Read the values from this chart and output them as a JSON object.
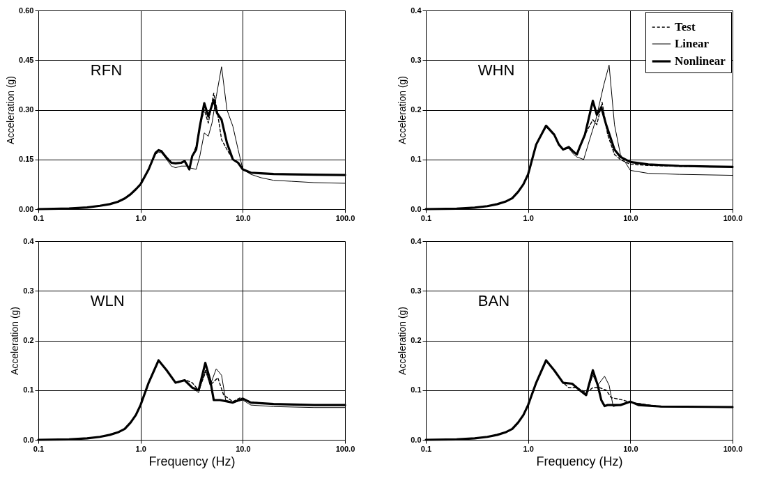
{
  "chart_data": [
    {
      "type": "line",
      "annotations": [
        "RFN"
      ],
      "ylabel": "Acceleration (g)",
      "ylim": [
        0,
        0.6
      ],
      "yticks": [
        {
          "value": 0,
          "label": "0.00"
        },
        0.15,
        {
          "value": 0.3,
          "label": "0.30"
        },
        0.45,
        {
          "value": 0.6,
          "label": "0.60"
        }
      ],
      "xlim": [
        0.1,
        100
      ],
      "xticks": [
        {
          "value": 0.1,
          "label": "0.1"
        },
        {
          "value": 1,
          "label": "1.0"
        },
        {
          "value": 10,
          "label": "10.0"
        },
        {
          "value": 100,
          "label": "100.0"
        }
      ],
      "log": "x",
      "grid": true,
      "legend": false,
      "series": [
        {
          "color": "#000000",
          "line_style": "dashed",
          "x": [
            0.1,
            0.2,
            0.3,
            0.4,
            0.5,
            0.6,
            0.7,
            0.8,
            0.9,
            1.0,
            1.2,
            1.4,
            1.5,
            1.6,
            1.8,
            2.0,
            2.2,
            2.5,
            2.7,
            3.0,
            3.2,
            3.5,
            3.8,
            4.2,
            4.6,
            5.2,
            5.6,
            6.2,
            7.0,
            8.0,
            9.0,
            10,
            12,
            15,
            20,
            30,
            50,
            100
          ],
          "values": [
            0.0,
            0.002,
            0.005,
            0.01,
            0.015,
            0.022,
            0.032,
            0.045,
            0.06,
            0.075,
            0.12,
            0.17,
            0.178,
            0.175,
            0.155,
            0.14,
            0.138,
            0.14,
            0.145,
            0.12,
            0.16,
            0.19,
            0.25,
            0.3,
            0.26,
            0.35,
            0.3,
            0.21,
            0.18,
            0.15,
            0.14,
            0.12,
            0.11,
            0.108,
            0.106,
            0.105,
            0.104,
            0.103
          ]
        },
        {
          "color": "#000000",
          "line_style": "solid",
          "x": [
            0.1,
            0.2,
            0.3,
            0.4,
            0.5,
            0.6,
            0.7,
            0.8,
            0.9,
            1.0,
            1.2,
            1.4,
            1.5,
            1.6,
            1.8,
            2.0,
            2.2,
            2.5,
            2.8,
            3.0,
            3.5,
            3.8,
            4.2,
            4.6,
            5.0,
            5.5,
            6.2,
            7.0,
            8.0,
            9.0,
            10,
            12,
            15,
            20,
            30,
            50,
            100
          ],
          "values": [
            0.0,
            0.002,
            0.005,
            0.01,
            0.015,
            0.022,
            0.032,
            0.045,
            0.06,
            0.075,
            0.12,
            0.165,
            0.172,
            0.17,
            0.15,
            0.13,
            0.125,
            0.13,
            0.13,
            0.125,
            0.12,
            0.16,
            0.23,
            0.22,
            0.26,
            0.34,
            0.43,
            0.3,
            0.25,
            0.18,
            0.12,
            0.105,
            0.095,
            0.087,
            0.084,
            0.08,
            0.078
          ]
        },
        {
          "color": "#000000",
          "line_style": "solid",
          "x": [
            0.1,
            0.2,
            0.3,
            0.4,
            0.5,
            0.6,
            0.7,
            0.8,
            0.9,
            1.0,
            1.2,
            1.4,
            1.5,
            1.6,
            1.8,
            2.0,
            2.2,
            2.5,
            2.7,
            3.0,
            3.2,
            3.5,
            3.8,
            4.2,
            4.6,
            5.2,
            5.6,
            6.2,
            7.0,
            8.0,
            9.0,
            10,
            12,
            15,
            20,
            30,
            50,
            100
          ],
          "values": [
            0.0,
            0.002,
            0.005,
            0.01,
            0.015,
            0.022,
            0.032,
            0.045,
            0.06,
            0.075,
            0.12,
            0.17,
            0.178,
            0.175,
            0.155,
            0.14,
            0.138,
            0.14,
            0.145,
            0.12,
            0.16,
            0.18,
            0.25,
            0.32,
            0.28,
            0.33,
            0.29,
            0.27,
            0.2,
            0.15,
            0.14,
            0.12,
            0.11,
            0.108,
            0.106,
            0.105,
            0.104,
            0.103
          ]
        }
      ]
    },
    {
      "type": "line",
      "annotations": [
        "WHN"
      ],
      "ylabel": "Acceleration (g)",
      "ylim": [
        0,
        0.4
      ],
      "yticks": [
        {
          "value": 0,
          "label": "0.0"
        },
        0.1,
        0.2,
        0.3,
        0.4
      ],
      "xlim": [
        0.1,
        100
      ],
      "xticks": [
        {
          "value": 0.1,
          "label": "0.1"
        },
        {
          "value": 1,
          "label": "1.0"
        },
        {
          "value": 10,
          "label": "10.0"
        },
        {
          "value": 100,
          "label": "100.0"
        }
      ],
      "log": "x",
      "grid": true,
      "legend": "top right",
      "series": [
        {
          "name": "Test",
          "color": "#000000",
          "line_style": "dashed",
          "x": [
            0.1,
            0.2,
            0.3,
            0.4,
            0.5,
            0.6,
            0.7,
            0.8,
            0.9,
            1.0,
            1.2,
            1.5,
            1.8,
            2.0,
            2.2,
            2.5,
            2.8,
            3.0,
            3.2,
            3.6,
            4.3,
            4.7,
            5.3,
            6.0,
            7.0,
            8.0,
            10,
            15,
            30,
            100
          ],
          "values": [
            0.0,
            0.001,
            0.003,
            0.006,
            0.01,
            0.015,
            0.022,
            0.035,
            0.05,
            0.07,
            0.13,
            0.168,
            0.15,
            0.13,
            0.12,
            0.125,
            0.115,
            0.11,
            0.125,
            0.15,
            0.18,
            0.17,
            0.215,
            0.15,
            0.11,
            0.1,
            0.09,
            0.088,
            0.086,
            0.085
          ]
        },
        {
          "name": "Linear",
          "color": "#000000",
          "line_style": "solid",
          "x": [
            0.1,
            0.2,
            0.3,
            0.4,
            0.5,
            0.6,
            0.7,
            0.8,
            0.9,
            1.0,
            1.2,
            1.5,
            1.8,
            2.0,
            2.2,
            2.5,
            2.8,
            3.0,
            3.5,
            4.0,
            4.6,
            5.5,
            6.2,
            7.0,
            8.0,
            10,
            15,
            30,
            100
          ],
          "values": [
            0.0,
            0.001,
            0.003,
            0.006,
            0.01,
            0.015,
            0.022,
            0.035,
            0.05,
            0.07,
            0.13,
            0.165,
            0.148,
            0.128,
            0.12,
            0.122,
            0.11,
            0.105,
            0.1,
            0.14,
            0.18,
            0.25,
            0.29,
            0.17,
            0.11,
            0.078,
            0.072,
            0.07,
            0.068
          ]
        },
        {
          "name": "Nonlinear",
          "color": "#000000",
          "line_style": "solid",
          "x": [
            0.1,
            0.2,
            0.3,
            0.4,
            0.5,
            0.6,
            0.7,
            0.8,
            0.9,
            1.0,
            1.2,
            1.5,
            1.8,
            2.0,
            2.2,
            2.5,
            2.8,
            3.0,
            3.2,
            3.6,
            4.3,
            4.7,
            5.2,
            5.8,
            7.0,
            8.0,
            10,
            15,
            30,
            100
          ],
          "values": [
            0.0,
            0.001,
            0.003,
            0.006,
            0.01,
            0.015,
            0.022,
            0.035,
            0.05,
            0.07,
            0.13,
            0.168,
            0.15,
            0.13,
            0.12,
            0.125,
            0.115,
            0.11,
            0.125,
            0.15,
            0.218,
            0.19,
            0.205,
            0.17,
            0.12,
            0.105,
            0.095,
            0.09,
            0.087,
            0.085
          ]
        }
      ]
    },
    {
      "type": "line",
      "annotations": [
        "WLN"
      ],
      "xlabel": "Frequency (Hz)",
      "ylabel": "Acceleration (g)",
      "ylim": [
        0,
        0.4
      ],
      "yticks": [
        {
          "value": 0,
          "label": "0.0"
        },
        0.1,
        0.2,
        0.3,
        0.4
      ],
      "xlim": [
        0.1,
        100
      ],
      "xticks": [
        {
          "value": 0.1,
          "label": "0.1"
        },
        {
          "value": 1,
          "label": "1.0"
        },
        {
          "value": 10,
          "label": "10.0"
        },
        {
          "value": 100,
          "label": "100.0"
        }
      ],
      "log": "x",
      "grid": true,
      "legend": false,
      "series": [
        {
          "color": "#000000",
          "line_style": "dashed",
          "x": [
            0.1,
            0.2,
            0.3,
            0.4,
            0.5,
            0.6,
            0.7,
            0.8,
            0.9,
            1.0,
            1.2,
            1.5,
            1.8,
            2.2,
            2.8,
            3.2,
            3.7,
            4.4,
            4.8,
            5.7,
            6.5,
            8.0,
            9.5,
            12,
            20,
            50,
            100
          ],
          "values": [
            0.0,
            0.001,
            0.003,
            0.006,
            0.01,
            0.015,
            0.022,
            0.035,
            0.05,
            0.07,
            0.115,
            0.16,
            0.14,
            0.115,
            0.12,
            0.115,
            0.1,
            0.14,
            0.11,
            0.125,
            0.09,
            0.077,
            0.085,
            0.076,
            0.072,
            0.07,
            0.07
          ]
        },
        {
          "color": "#000000",
          "line_style": "solid",
          "x": [
            0.1,
            0.2,
            0.3,
            0.4,
            0.5,
            0.6,
            0.7,
            0.8,
            0.9,
            1.0,
            1.2,
            1.5,
            1.8,
            2.2,
            2.7,
            3.2,
            3.7,
            4.3,
            4.8,
            5.5,
            6.2,
            6.8,
            8.0,
            10,
            12,
            20,
            50,
            100
          ],
          "values": [
            0.0,
            0.001,
            0.003,
            0.006,
            0.01,
            0.015,
            0.022,
            0.035,
            0.05,
            0.07,
            0.115,
            0.16,
            0.14,
            0.115,
            0.12,
            0.105,
            0.095,
            0.14,
            0.11,
            0.143,
            0.13,
            0.08,
            0.075,
            0.08,
            0.07,
            0.067,
            0.065,
            0.065
          ]
        },
        {
          "color": "#000000",
          "line_style": "solid",
          "x": [
            0.1,
            0.2,
            0.3,
            0.4,
            0.5,
            0.6,
            0.7,
            0.8,
            0.9,
            1.0,
            1.2,
            1.5,
            1.8,
            2.2,
            2.7,
            3.2,
            3.7,
            4.3,
            4.8,
            5.2,
            6.0,
            8.0,
            10,
            12,
            20,
            50,
            100
          ],
          "values": [
            0.0,
            0.001,
            0.003,
            0.006,
            0.01,
            0.015,
            0.022,
            0.035,
            0.05,
            0.07,
            0.115,
            0.16,
            0.14,
            0.115,
            0.12,
            0.105,
            0.1,
            0.155,
            0.12,
            0.08,
            0.08,
            0.075,
            0.083,
            0.075,
            0.072,
            0.07,
            0.07
          ]
        }
      ]
    },
    {
      "type": "line",
      "annotations": [
        "BAN"
      ],
      "xlabel": "Frequency (Hz)",
      "ylabel": "Acceleration (g)",
      "ylim": [
        0,
        0.4
      ],
      "yticks": [
        {
          "value": 0,
          "label": "0.0"
        },
        0.1,
        0.2,
        0.3,
        0.4
      ],
      "xlim": [
        0.1,
        100
      ],
      "xticks": [
        {
          "value": 0.1,
          "label": "0.1"
        },
        {
          "value": 1,
          "label": "1.0"
        },
        {
          "value": 10,
          "label": "10.0"
        },
        {
          "value": 100,
          "label": "100.0"
        }
      ],
      "log": "x",
      "grid": true,
      "legend": false,
      "series": [
        {
          "color": "#000000",
          "line_style": "dashed",
          "x": [
            0.1,
            0.2,
            0.3,
            0.4,
            0.5,
            0.6,
            0.7,
            0.8,
            0.9,
            1.0,
            1.2,
            1.5,
            1.8,
            2.2,
            2.5,
            3.0,
            3.7,
            4.3,
            5.0,
            5.8,
            6.5,
            8.5,
            10,
            20,
            100
          ],
          "values": [
            0.0,
            0.001,
            0.003,
            0.006,
            0.01,
            0.015,
            0.022,
            0.035,
            0.05,
            0.07,
            0.115,
            0.16,
            0.14,
            0.115,
            0.105,
            0.105,
            0.095,
            0.105,
            0.105,
            0.1,
            0.085,
            0.08,
            0.075,
            0.067,
            0.066
          ]
        },
        {
          "color": "#000000",
          "line_style": "solid",
          "x": [
            0.1,
            0.2,
            0.3,
            0.4,
            0.5,
            0.6,
            0.7,
            0.8,
            0.9,
            1.0,
            1.2,
            1.5,
            1.8,
            2.2,
            2.7,
            3.2,
            3.7,
            4.3,
            4.8,
            5.6,
            6.2,
            6.8,
            8.0,
            10,
            20,
            100
          ],
          "values": [
            0.0,
            0.001,
            0.003,
            0.006,
            0.01,
            0.015,
            0.022,
            0.035,
            0.05,
            0.07,
            0.115,
            0.16,
            0.14,
            0.115,
            0.113,
            0.1,
            0.09,
            0.13,
            0.11,
            0.128,
            0.11,
            0.067,
            0.07,
            0.076,
            0.066,
            0.065
          ]
        },
        {
          "color": "#000000",
          "line_style": "solid",
          "x": [
            0.1,
            0.2,
            0.3,
            0.4,
            0.5,
            0.6,
            0.7,
            0.8,
            0.9,
            1.0,
            1.2,
            1.5,
            1.8,
            2.2,
            2.7,
            3.2,
            3.7,
            4.3,
            4.8,
            5.2,
            5.6,
            6.0,
            8.0,
            10,
            12,
            20,
            100
          ],
          "values": [
            0.0,
            0.001,
            0.003,
            0.006,
            0.01,
            0.015,
            0.022,
            0.035,
            0.05,
            0.07,
            0.115,
            0.16,
            0.14,
            0.115,
            0.113,
            0.1,
            0.09,
            0.14,
            0.11,
            0.08,
            0.068,
            0.07,
            0.07,
            0.077,
            0.07,
            0.067,
            0.066
          ]
        }
      ]
    }
  ]
}
